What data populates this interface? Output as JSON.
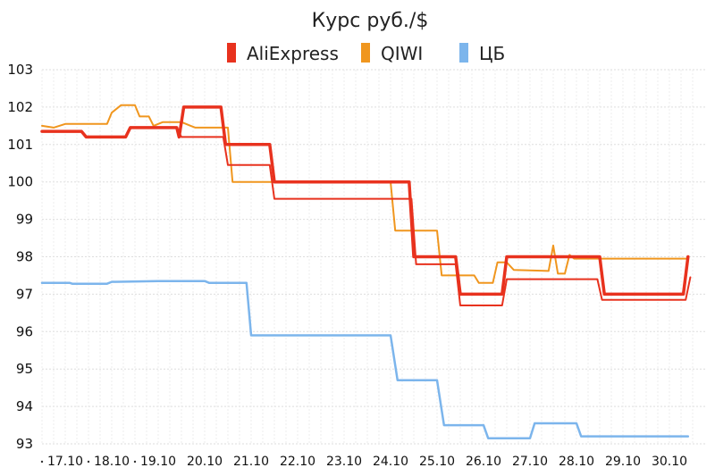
{
  "chart_data": {
    "type": "line",
    "title": "Курс руб./$",
    "xlabel": "",
    "ylabel": "",
    "ylim": [
      93,
      103
    ],
    "yticks": [
      93,
      94,
      95,
      96,
      97,
      98,
      99,
      100,
      101,
      102,
      103
    ],
    "xlim": [
      16.0,
      30.0
    ],
    "grid": true,
    "legend_position": "top-center",
    "xticks": [
      {
        "x": 16.5,
        "label": "17.10"
      },
      {
        "x": 17.5,
        "label": "18.10"
      },
      {
        "x": 18.5,
        "label": "19.10"
      },
      {
        "x": 19.5,
        "label": "20.10"
      },
      {
        "x": 20.5,
        "label": "21.10"
      },
      {
        "x": 21.5,
        "label": "22.10"
      },
      {
        "x": 22.5,
        "label": "23.10"
      },
      {
        "x": 23.5,
        "label": "24.10"
      },
      {
        "x": 24.5,
        "label": "25.10"
      },
      {
        "x": 25.5,
        "label": "26.10"
      },
      {
        "x": 26.5,
        "label": "27.10"
      },
      {
        "x": 27.5,
        "label": "28.10"
      },
      {
        "x": 28.5,
        "label": "29.10"
      },
      {
        "x": 29.5,
        "label": "30.10"
      }
    ],
    "xtick_dots": [
      16.0,
      17.0,
      18.0
    ],
    "series": [
      {
        "name": "ЦБ",
        "color": "#7cb5ec",
        "width": 2.5,
        "points": [
          [
            16.0,
            97.3
          ],
          [
            16.6,
            97.3
          ],
          [
            16.65,
            97.28
          ],
          [
            17.4,
            97.28
          ],
          [
            17.5,
            97.33
          ],
          [
            18.5,
            97.35
          ],
          [
            19.5,
            97.35
          ],
          [
            19.6,
            97.3
          ],
          [
            20.4,
            97.3
          ],
          [
            20.5,
            95.9
          ],
          [
            23.5,
            95.9
          ],
          [
            23.65,
            94.7
          ],
          [
            24.5,
            94.7
          ],
          [
            24.65,
            93.5
          ],
          [
            25.5,
            93.5
          ],
          [
            25.6,
            93.15
          ],
          [
            26.5,
            93.15
          ],
          [
            26.6,
            93.55
          ],
          [
            27.5,
            93.55
          ],
          [
            27.6,
            93.2
          ],
          [
            29.9,
            93.2
          ]
        ]
      },
      {
        "name": "QIWI",
        "color": "#f0961e",
        "width": 2,
        "points": [
          [
            16.0,
            101.5
          ],
          [
            16.25,
            101.45
          ],
          [
            16.5,
            101.55
          ],
          [
            17.4,
            101.55
          ],
          [
            17.5,
            101.85
          ],
          [
            17.7,
            102.05
          ],
          [
            18.0,
            102.05
          ],
          [
            18.1,
            101.75
          ],
          [
            18.3,
            101.75
          ],
          [
            18.4,
            101.5
          ],
          [
            18.6,
            101.6
          ],
          [
            19.0,
            101.6
          ],
          [
            19.2,
            101.5
          ],
          [
            19.3,
            101.45
          ],
          [
            19.5,
            101.45
          ],
          [
            20.0,
            101.45
          ],
          [
            20.1,
            100.0
          ],
          [
            20.5,
            100.0
          ],
          [
            23.5,
            100.0
          ],
          [
            23.6,
            98.7
          ],
          [
            24.5,
            98.7
          ],
          [
            24.6,
            97.5
          ],
          [
            25.3,
            97.5
          ],
          [
            25.4,
            97.3
          ],
          [
            25.7,
            97.3
          ],
          [
            25.8,
            97.85
          ],
          [
            26.0,
            97.85
          ],
          [
            26.15,
            97.65
          ],
          [
            26.9,
            97.62
          ],
          [
            27.0,
            98.3
          ],
          [
            27.1,
            97.55
          ],
          [
            27.25,
            97.55
          ],
          [
            27.35,
            98.05
          ],
          [
            27.45,
            97.95
          ],
          [
            28.0,
            97.95
          ],
          [
            29.9,
            97.95
          ]
        ]
      },
      {
        "name": "AliExpress (2)",
        "color": "#e8321e",
        "width": 2,
        "legend": false,
        "points": [
          [
            16.0,
            101.35
          ],
          [
            16.85,
            101.35
          ],
          [
            16.95,
            101.2
          ],
          [
            17.8,
            101.2
          ],
          [
            17.9,
            101.45
          ],
          [
            18.9,
            101.45
          ],
          [
            19.0,
            101.2
          ],
          [
            19.9,
            101.2
          ],
          [
            20.0,
            100.45
          ],
          [
            20.9,
            100.45
          ],
          [
            21.0,
            99.55
          ],
          [
            23.95,
            99.55
          ],
          [
            24.05,
            97.8
          ],
          [
            24.9,
            97.8
          ],
          [
            25.0,
            96.7
          ],
          [
            25.9,
            96.7
          ],
          [
            26.0,
            97.4
          ],
          [
            27.95,
            97.4
          ],
          [
            28.05,
            96.85
          ],
          [
            29.85,
            96.85
          ],
          [
            29.95,
            97.45
          ]
        ]
      },
      {
        "name": "AliExpress",
        "color": "#e8321e",
        "width": 3.5,
        "points": [
          [
            16.0,
            101.35
          ],
          [
            16.85,
            101.35
          ],
          [
            16.95,
            101.2
          ],
          [
            17.8,
            101.2
          ],
          [
            17.9,
            101.45
          ],
          [
            18.9,
            101.45
          ],
          [
            18.95,
            101.2
          ],
          [
            19.05,
            102.0
          ],
          [
            19.85,
            102.0
          ],
          [
            19.95,
            101.0
          ],
          [
            20.9,
            101.0
          ],
          [
            21.0,
            100.0
          ],
          [
            23.9,
            100.0
          ],
          [
            24.0,
            98.0
          ],
          [
            24.9,
            98.0
          ],
          [
            25.0,
            97.0
          ],
          [
            25.9,
            97.0
          ],
          [
            26.0,
            98.0
          ],
          [
            28.0,
            98.0
          ],
          [
            28.1,
            97.0
          ],
          [
            29.8,
            97.0
          ],
          [
            29.9,
            98.0
          ]
        ]
      }
    ],
    "legend": [
      {
        "name": "AliExpress",
        "color": "#e8321e"
      },
      {
        "name": "QIWI",
        "color": "#f0961e"
      },
      {
        "name": "ЦБ",
        "color": "#7cb5ec"
      }
    ]
  }
}
